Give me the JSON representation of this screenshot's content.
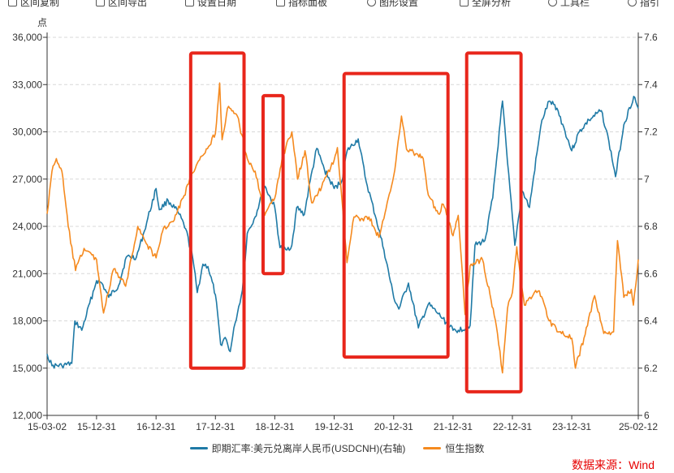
{
  "toolbar": {
    "items": [
      {
        "label": "区间复制",
        "icon": "copy-icon"
      },
      {
        "label": "区间导出",
        "icon": "export-icon"
      },
      {
        "label": "设置日期",
        "icon": "calendar-icon"
      },
      {
        "label": "指标面板",
        "icon": "panel-icon"
      },
      {
        "label": "图形设置",
        "icon": "settings-icon"
      },
      {
        "label": "全屏分析",
        "icon": "fullscreen-icon"
      },
      {
        "label": "工具栏",
        "icon": "toolbar-icon"
      },
      {
        "label": "指引",
        "icon": "help-icon"
      }
    ]
  },
  "colors": {
    "series_usdcnh": "#1f7aa6",
    "series_hsi": "#f58a1f",
    "highlight_box": "#e8261b",
    "source": "#e60000"
  },
  "source_text": "数据来源：Wind",
  "chart_data": {
    "type": "line",
    "title": "",
    "left_axis_unit": "点",
    "y_left_range": [
      12000,
      36000
    ],
    "y_left_ticks": [
      "12,000",
      "15,000",
      "18,000",
      "21,000",
      "24,000",
      "27,000",
      "30,000",
      "33,000",
      "36,000"
    ],
    "y_right_range": [
      6.0,
      7.6
    ],
    "y_right_ticks": [
      "6",
      "6.2",
      "6.4",
      "6.6",
      "6.8",
      "7",
      "7.2",
      "7.4",
      "7.6"
    ],
    "x_range": [
      "2015-03-02",
      "2025-02-12"
    ],
    "x_tick_labels": [
      "15-03-02",
      "15-12-31",
      "16-12-31",
      "17-12-31",
      "18-12-31",
      "19-12-31",
      "20-12-31",
      "21-12-31",
      "22-12-31",
      "23-12-31",
      "25-02-12"
    ],
    "x_tick_dates": [
      "2015-03-02",
      "2015-12-31",
      "2016-12-31",
      "2017-12-31",
      "2018-12-31",
      "2019-12-31",
      "2020-12-31",
      "2021-12-31",
      "2022-12-31",
      "2023-12-31",
      "2025-02-12"
    ],
    "grid": "horizontal dashed",
    "legend_position": "bottom-center",
    "series": [
      {
        "name": "即期汇率:美元兑离岸人民币(USDCNH)(右轴)",
        "axis": "right",
        "color": "#1f7aa6",
        "points": [
          [
            "2015-03-02",
            6.26
          ],
          [
            "2015-04-01",
            6.21
          ],
          [
            "2015-06-01",
            6.21
          ],
          [
            "2015-08-01",
            6.22
          ],
          [
            "2015-08-20",
            6.4
          ],
          [
            "2015-10-01",
            6.36
          ],
          [
            "2015-12-31",
            6.57
          ],
          [
            "2016-02-01",
            6.56
          ],
          [
            "2016-03-15",
            6.5
          ],
          [
            "2016-05-15",
            6.55
          ],
          [
            "2016-07-01",
            6.67
          ],
          [
            "2016-09-01",
            6.67
          ],
          [
            "2016-10-20",
            6.78
          ],
          [
            "2016-12-31",
            6.96
          ],
          [
            "2017-01-20",
            6.87
          ],
          [
            "2017-03-15",
            6.91
          ],
          [
            "2017-05-15",
            6.86
          ],
          [
            "2017-07-01",
            6.79
          ],
          [
            "2017-08-15",
            6.66
          ],
          [
            "2017-09-10",
            6.52
          ],
          [
            "2017-10-15",
            6.64
          ],
          [
            "2017-11-15",
            6.63
          ],
          [
            "2017-12-31",
            6.51
          ],
          [
            "2018-02-01",
            6.3
          ],
          [
            "2018-03-01",
            6.33
          ],
          [
            "2018-04-01",
            6.27
          ],
          [
            "2018-05-01",
            6.39
          ],
          [
            "2018-06-15",
            6.53
          ],
          [
            "2018-07-15",
            6.77
          ],
          [
            "2018-09-01",
            6.84
          ],
          [
            "2018-10-31",
            6.97
          ],
          [
            "2018-12-31",
            6.88
          ],
          [
            "2019-02-01",
            6.71
          ],
          [
            "2019-03-15",
            6.7
          ],
          [
            "2019-04-15",
            6.72
          ],
          [
            "2019-05-15",
            6.88
          ],
          [
            "2019-07-01",
            6.85
          ],
          [
            "2019-08-05",
            6.99
          ],
          [
            "2019-09-15",
            7.13
          ],
          [
            "2019-11-01",
            7.04
          ],
          [
            "2019-12-31",
            6.96
          ],
          [
            "2020-02-15",
            6.99
          ],
          [
            "2020-03-20",
            7.12
          ],
          [
            "2020-05-27",
            7.17
          ],
          [
            "2020-07-15",
            6.99
          ],
          [
            "2020-09-15",
            6.83
          ],
          [
            "2020-11-01",
            6.7
          ],
          [
            "2020-12-31",
            6.5
          ],
          [
            "2021-02-01",
            6.45
          ],
          [
            "2021-04-01",
            6.56
          ],
          [
            "2021-06-01",
            6.37
          ],
          [
            "2021-08-01",
            6.47
          ],
          [
            "2021-10-01",
            6.43
          ],
          [
            "2021-12-31",
            6.36
          ],
          [
            "2022-02-01",
            6.36
          ],
          [
            "2022-04-15",
            6.38
          ],
          [
            "2022-05-15",
            6.72
          ],
          [
            "2022-07-15",
            6.74
          ],
          [
            "2022-09-01",
            6.92
          ],
          [
            "2022-10-31",
            7.33
          ],
          [
            "2022-12-01",
            7.07
          ],
          [
            "2023-01-15",
            6.72
          ],
          [
            "2023-03-01",
            6.95
          ],
          [
            "2023-04-15",
            6.88
          ],
          [
            "2023-05-31",
            7.11
          ],
          [
            "2023-07-01",
            7.25
          ],
          [
            "2023-08-15",
            7.33
          ],
          [
            "2023-10-01",
            7.3
          ],
          [
            "2023-12-31",
            7.12
          ],
          [
            "2024-02-15",
            7.2
          ],
          [
            "2024-04-15",
            7.25
          ],
          [
            "2024-06-30",
            7.29
          ],
          [
            "2024-08-15",
            7.16
          ],
          [
            "2024-09-25",
            7.01
          ],
          [
            "2024-11-15",
            7.23
          ],
          [
            "2025-01-15",
            7.35
          ],
          [
            "2025-02-12",
            7.3
          ]
        ]
      },
      {
        "name": "恒生指数",
        "axis": "left",
        "color": "#f58a1f",
        "points": [
          [
            "2015-03-02",
            24800
          ],
          [
            "2015-04-01",
            27500
          ],
          [
            "2015-04-28",
            28300
          ],
          [
            "2015-06-01",
            27500
          ],
          [
            "2015-07-10",
            24000
          ],
          [
            "2015-08-24",
            21200
          ],
          [
            "2015-10-15",
            22600
          ],
          [
            "2015-12-31",
            21900
          ],
          [
            "2016-02-12",
            18500
          ],
          [
            "2016-04-15",
            21300
          ],
          [
            "2016-06-27",
            20200
          ],
          [
            "2016-09-09",
            24000
          ],
          [
            "2016-11-01",
            22900
          ],
          [
            "2016-12-31",
            22000
          ],
          [
            "2017-02-15",
            23900
          ],
          [
            "2017-04-15",
            24300
          ],
          [
            "2017-06-15",
            25800
          ],
          [
            "2017-08-15",
            27400
          ],
          [
            "2017-10-15",
            28500
          ],
          [
            "2017-12-31",
            29900
          ],
          [
            "2018-01-26",
            33100
          ],
          [
            "2018-02-10",
            29500
          ],
          [
            "2018-03-15",
            31500
          ],
          [
            "2018-05-15",
            31000
          ],
          [
            "2018-07-15",
            28300
          ],
          [
            "2018-09-01",
            27500
          ],
          [
            "2018-10-30",
            24700
          ],
          [
            "2018-12-31",
            25800
          ],
          [
            "2019-02-15",
            28400
          ],
          [
            "2019-04-15",
            30000
          ],
          [
            "2019-05-20",
            27000
          ],
          [
            "2019-07-05",
            28800
          ],
          [
            "2019-08-15",
            25500
          ],
          [
            "2019-10-15",
            26500
          ],
          [
            "2019-12-31",
            28200
          ],
          [
            "2020-01-20",
            29000
          ],
          [
            "2020-03-19",
            21700
          ],
          [
            "2020-05-01",
            24600
          ],
          [
            "2020-06-15",
            24500
          ],
          [
            "2020-08-01",
            24600
          ],
          [
            "2020-10-01",
            23300
          ],
          [
            "2020-11-01",
            24500
          ],
          [
            "2020-12-31",
            27200
          ],
          [
            "2021-02-17",
            31000
          ],
          [
            "2021-03-20",
            28900
          ],
          [
            "2021-05-15",
            28600
          ],
          [
            "2021-07-01",
            28300
          ],
          [
            "2021-08-01",
            26000
          ],
          [
            "2021-10-01",
            24800
          ],
          [
            "2021-11-01",
            25400
          ],
          [
            "2021-12-31",
            23400
          ],
          [
            "2022-02-01",
            24700
          ],
          [
            "2022-03-15",
            18400
          ],
          [
            "2022-04-15",
            21500
          ],
          [
            "2022-06-30",
            21900
          ],
          [
            "2022-08-15",
            19700
          ],
          [
            "2022-09-30",
            17200
          ],
          [
            "2022-10-31",
            14700
          ],
          [
            "2022-12-01",
            18800
          ],
          [
            "2022-12-31",
            19800
          ],
          [
            "2023-01-27",
            22700
          ],
          [
            "2023-03-15",
            19000
          ],
          [
            "2023-05-15",
            19800
          ],
          [
            "2023-06-15",
            19900
          ],
          [
            "2023-08-15",
            18000
          ],
          [
            "2023-10-15",
            17300
          ],
          [
            "2023-12-31",
            16900
          ],
          [
            "2024-01-22",
            15000
          ],
          [
            "2024-03-15",
            16900
          ],
          [
            "2024-05-20",
            19600
          ],
          [
            "2024-07-15",
            17200
          ],
          [
            "2024-09-13",
            17300
          ],
          [
            "2024-10-07",
            23100
          ],
          [
            "2024-11-15",
            19500
          ],
          [
            "2024-12-31",
            20000
          ],
          [
            "2025-01-13",
            19000
          ],
          [
            "2025-02-12",
            21900
          ]
        ]
      }
    ],
    "highlight_ranges": [
      {
        "from": "2017-08-01",
        "to": "2018-06-25",
        "y_top": 35000,
        "y_bottom": 15000
      },
      {
        "from": "2018-10-20",
        "to": "2019-02-20",
        "y_top": 32300,
        "y_bottom": 21000
      },
      {
        "from": "2020-03-01",
        "to": "2021-11-30",
        "y_top": 33700,
        "y_bottom": 15700
      },
      {
        "from": "2022-03-25",
        "to": "2023-02-22",
        "y_top": 35000,
        "y_bottom": 13500
      }
    ]
  },
  "legend": [
    {
      "label": "即期汇率:美元兑离岸人民币(USDCNH)(右轴)",
      "color": "#1f7aa6"
    },
    {
      "label": "恒生指数",
      "color": "#f58a1f"
    }
  ]
}
